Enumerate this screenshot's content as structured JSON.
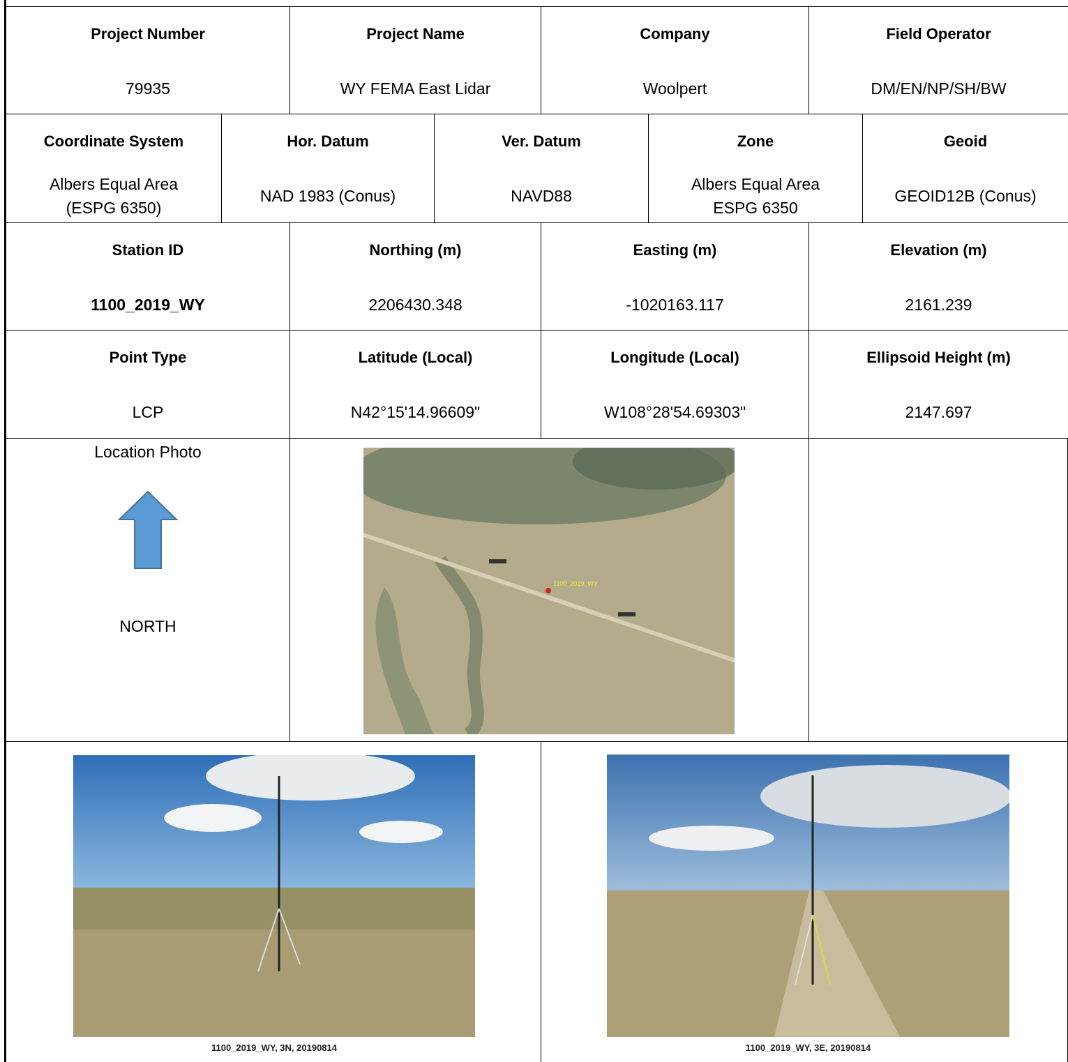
{
  "rows": [
    [
      {
        "label": "Project Number",
        "value": "79935"
      },
      {
        "label": "Project Name",
        "value": "WY FEMA East Lidar"
      },
      {
        "label": "Company",
        "value": "Woolpert"
      },
      {
        "label": "Field Operator",
        "value": "DM/EN/NP/SH/BW"
      }
    ],
    [
      {
        "label": "Coordinate System",
        "value": "Albers Equal Area\n(ESPG 6350)"
      },
      {
        "label": "Hor. Datum",
        "value": "NAD 1983 (Conus)"
      },
      {
        "label": "Ver. Datum",
        "value": "NAVD88"
      },
      {
        "label": "Zone",
        "value": "Albers Equal Area\nESPG 6350"
      },
      {
        "label": "Geoid",
        "value": "GEOID12B (Conus)"
      }
    ],
    [
      {
        "label": "Station ID",
        "value": "1100_2019_WY"
      },
      {
        "label": "Northing (m)",
        "value": "2206430.348"
      },
      {
        "label": "Easting (m)",
        "value": "-1020163.117"
      },
      {
        "label": "Elevation (m)",
        "value": "2161.239"
      }
    ],
    [
      {
        "label": "Point Type",
        "value": "LCP"
      },
      {
        "label": "Latitude (Local)",
        "value": "N42°15'14.96609\""
      },
      {
        "label": "Longitude (Local)",
        "value": "W108°28'54.69303\""
      },
      {
        "label": "Ellipsoid Height (m)",
        "value": "2147.697"
      }
    ]
  ],
  "location_photo": {
    "label": "Location Photo",
    "direction": "NORTH"
  },
  "map_marker_label": "1100_2019_WY",
  "photos": [
    {
      "caption": "1100_2019_WY, 3N, 20190814"
    },
    {
      "caption": "1100_2019_WY, 3E, 20190814"
    }
  ]
}
